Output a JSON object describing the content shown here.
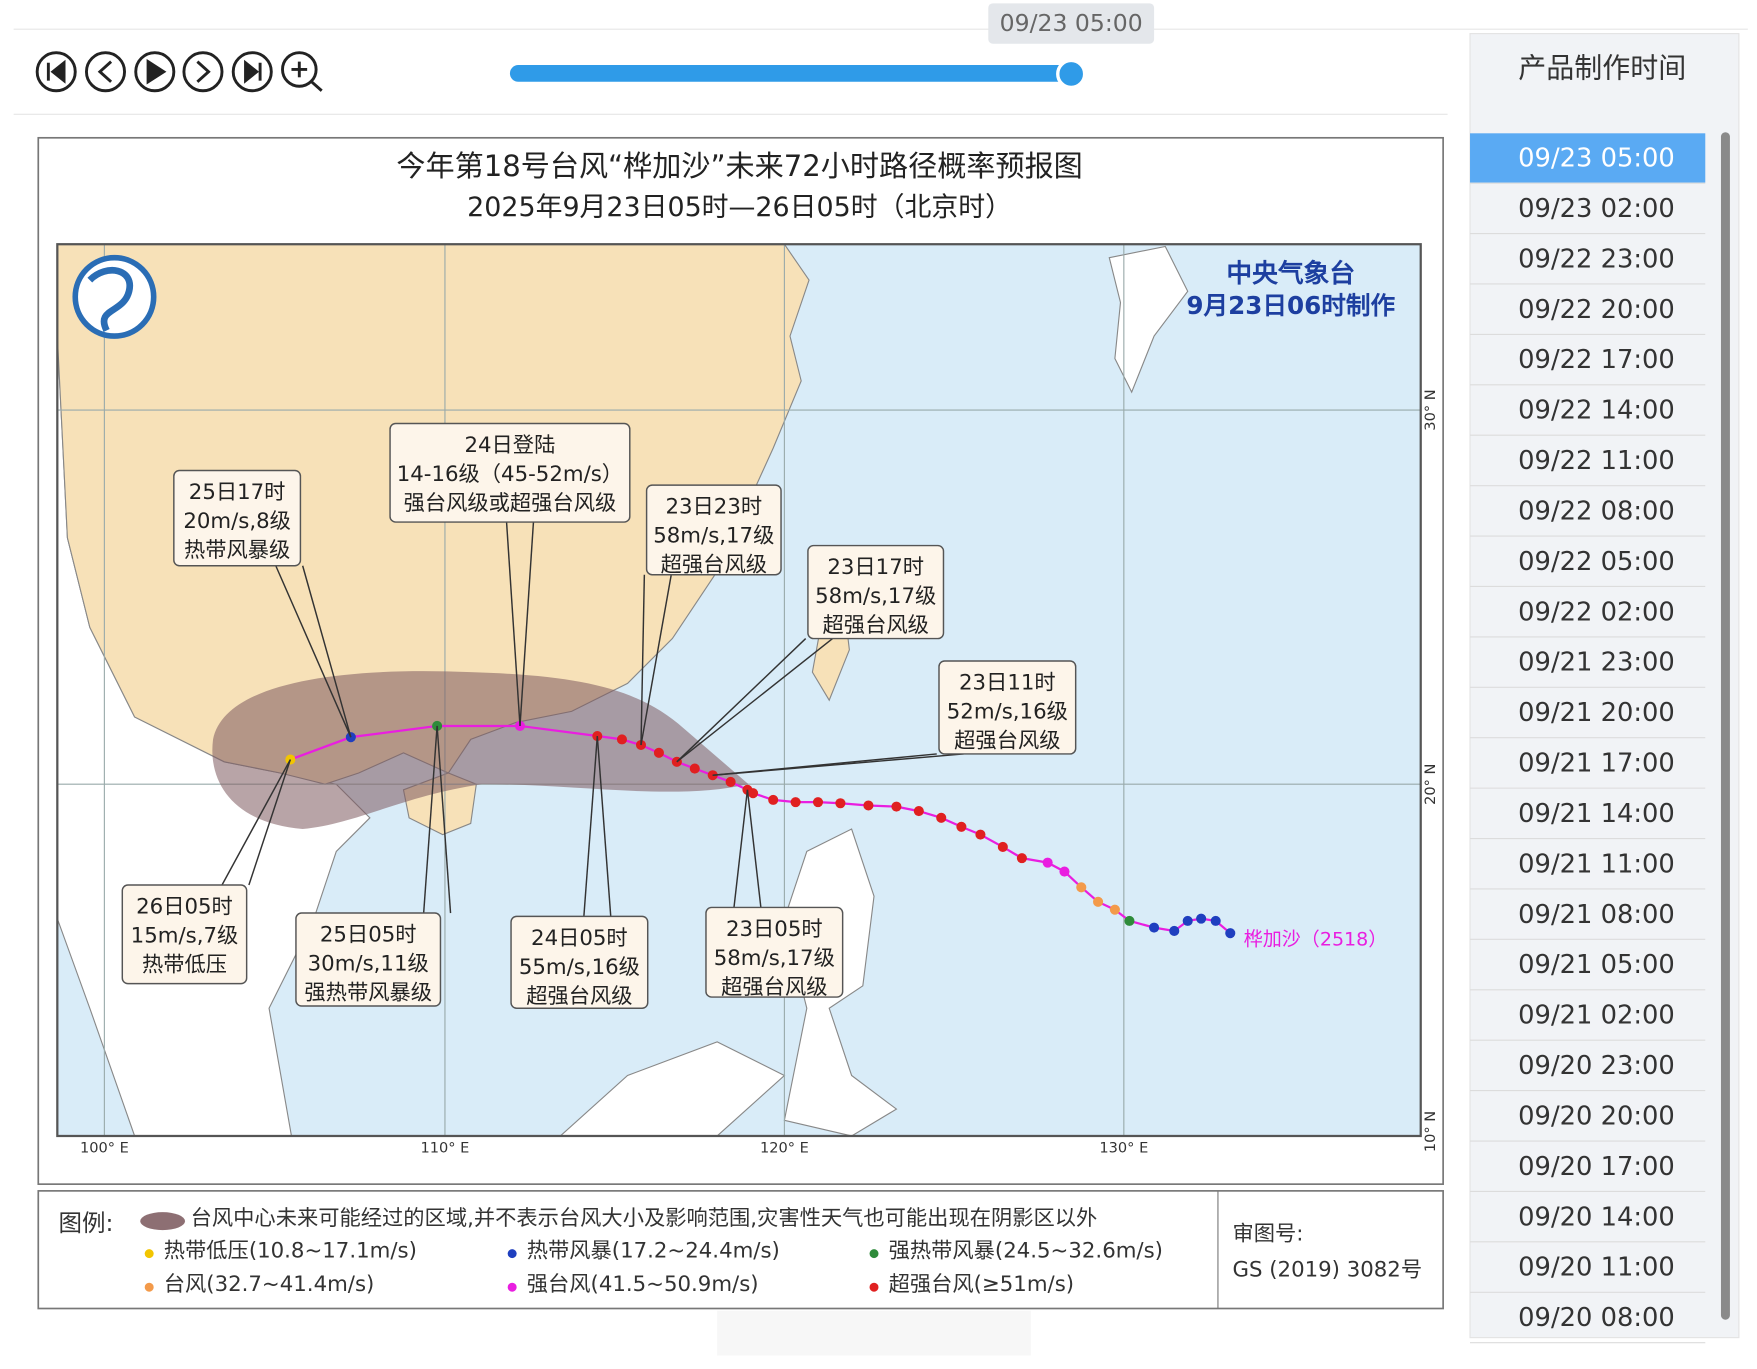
{
  "player": {
    "current_time": "09/23 05:00"
  },
  "sidebar": {
    "header": "产品制作时间",
    "selected_index": 0,
    "times": [
      "09/23 05:00",
      "09/23 02:00",
      "09/22 23:00",
      "09/22 20:00",
      "09/22 17:00",
      "09/22 14:00",
      "09/22 11:00",
      "09/22 08:00",
      "09/22 05:00",
      "09/22 02:00",
      "09/21 23:00",
      "09/21 20:00",
      "09/21 17:00",
      "09/21 14:00",
      "09/21 11:00",
      "09/21 08:00",
      "09/21 05:00",
      "09/21 02:00",
      "09/20 23:00",
      "09/20 20:00",
      "09/20 17:00",
      "09/20 14:00",
      "09/20 11:00",
      "09/20 08:00"
    ]
  },
  "map": {
    "title": "今年第18号台风“桦加沙”未来72小时路径概率预报图",
    "subtitle": "2025年9月23日05时—26日05时（北京时）",
    "agency": "中央气象台",
    "issued": "9月23日06时制作",
    "typhoon_label": "桦加沙（2518）",
    "lon_labels": [
      "100° E",
      "110° E",
      "120° E",
      "130° E"
    ],
    "lat_labels": [
      "30° N",
      "20° N",
      "10° N"
    ],
    "callouts": [
      {
        "lines": [
          "25日17时",
          "20m/s,8级",
          "热带风暴级"
        ]
      },
      {
        "lines": [
          "24日登陆",
          "14-16级（45-52m/s）",
          "强台风级或超强台风级"
        ]
      },
      {
        "lines": [
          "23日23时",
          "58m/s,17级",
          "超强台风级"
        ]
      },
      {
        "lines": [
          "23日17时",
          "58m/s,17级",
          "超强台风级"
        ]
      },
      {
        "lines": [
          "23日11时",
          "52m/s,16级",
          "超强台风级"
        ]
      },
      {
        "lines": [
          "26日05时",
          "15m/s,7级",
          "热带低压"
        ]
      },
      {
        "lines": [
          "25日05时",
          "30m/s,11级",
          "强热带风暴级"
        ]
      },
      {
        "lines": [
          "24日05时",
          "55m/s,16级",
          "超强台风级"
        ]
      },
      {
        "lines": [
          "23日05时",
          "58m/s,17级",
          "超强台风级"
        ]
      }
    ]
  },
  "legend": {
    "title": "图例:",
    "cone": "台风中心未来可能经过的区域,并不表示台风大小及影响范围,灾害性天气也可能出现在阴影区以外",
    "levels": [
      {
        "name": "热带低压(10.8~17.1m/s)",
        "color": "#f2c500"
      },
      {
        "name": "热带风暴(17.2~24.4m/s)",
        "color": "#1f3fbf"
      },
      {
        "name": "强热带风暴(24.5~32.6m/s)",
        "color": "#2e8b3a"
      },
      {
        "name": "台风(32.7~41.4m/s)",
        "color": "#f39a4a"
      },
      {
        "name": "强台风(41.5~50.9m/s)",
        "color": "#e91ee0"
      },
      {
        "name": "超强台风(≥51m/s)",
        "color": "#e02020"
      }
    ]
  },
  "approval": {
    "label": "审图号:",
    "number": "GS (2019) 3082号"
  }
}
